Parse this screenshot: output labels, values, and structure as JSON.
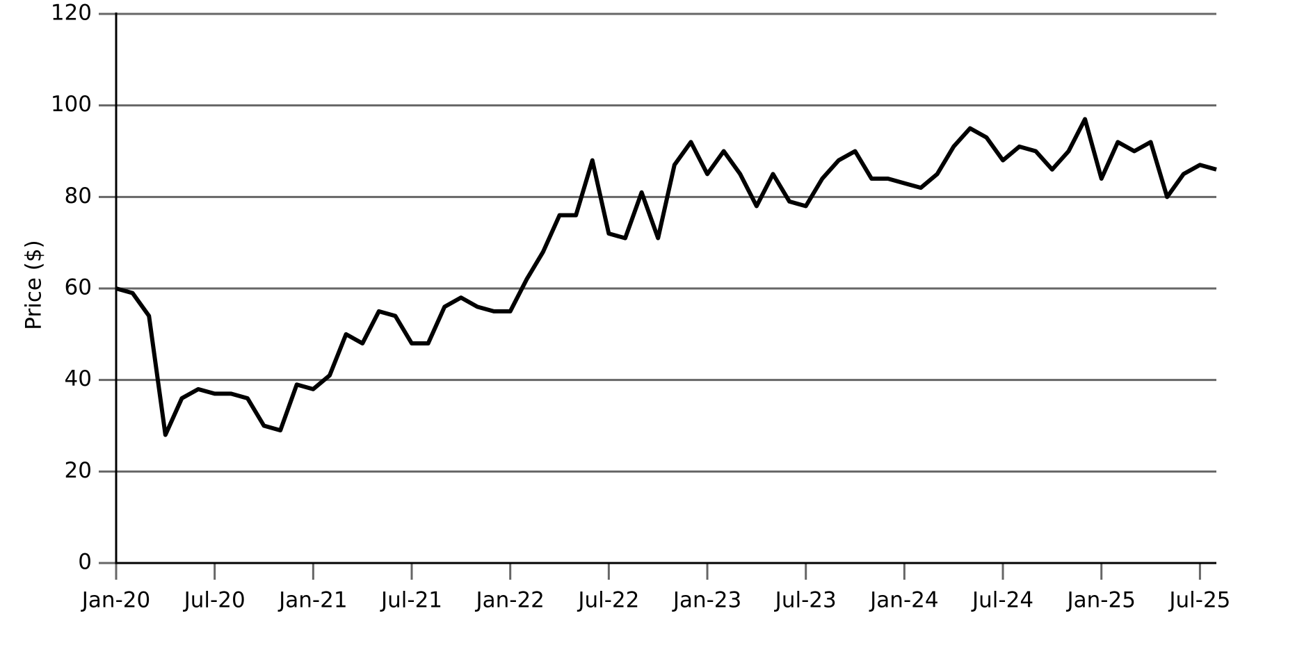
{
  "chart_data": {
    "type": "line",
    "y_label": "Price ($)",
    "x": [
      "2020-01",
      "2020-02",
      "2020-03",
      "2020-04",
      "2020-05",
      "2020-06",
      "2020-07",
      "2020-08",
      "2020-09",
      "2020-10",
      "2020-11",
      "2020-12",
      "2021-01",
      "2021-02",
      "2021-03",
      "2021-04",
      "2021-05",
      "2021-06",
      "2021-07",
      "2021-08",
      "2021-09",
      "2021-10",
      "2021-11",
      "2021-12",
      "2022-01",
      "2022-02",
      "2022-03",
      "2022-04",
      "2022-05",
      "2022-06",
      "2022-07",
      "2022-08",
      "2022-09",
      "2022-10",
      "2022-11",
      "2022-12",
      "2023-01",
      "2023-02",
      "2023-03",
      "2023-04",
      "2023-05",
      "2023-06",
      "2023-07",
      "2023-08",
      "2023-09",
      "2023-10",
      "2023-11",
      "2023-12",
      "2024-01",
      "2024-02",
      "2024-03",
      "2024-04",
      "2024-05",
      "2024-06",
      "2024-07",
      "2024-08",
      "2024-09",
      "2024-10",
      "2024-11",
      "2024-12",
      "2025-01",
      "2025-02",
      "2025-03",
      "2025-04",
      "2025-05",
      "2025-06",
      "2025-07",
      "2025-08"
    ],
    "series": [
      {
        "name": "Price",
        "color": "#000000",
        "values": [
          60,
          59,
          54,
          28,
          36,
          38,
          37,
          37,
          36,
          30,
          29,
          39,
          38,
          41,
          50,
          48,
          55,
          54,
          48,
          48,
          56,
          58,
          56,
          55,
          55,
          62,
          68,
          76,
          76,
          88,
          72,
          71,
          81,
          71,
          87,
          92,
          85,
          90,
          85,
          78,
          85,
          79,
          78,
          84,
          88,
          90,
          84,
          84,
          83,
          82,
          85,
          91,
          95,
          93,
          88,
          91,
          90,
          86,
          90,
          97,
          84,
          92,
          90,
          92,
          80,
          85,
          87,
          86
        ]
      }
    ],
    "xlim": [
      "2020-01",
      "2025-08"
    ],
    "xticks": [
      {
        "value": "2020-01",
        "label": "Jan-20"
      },
      {
        "value": "2020-07",
        "label": "Jul-20"
      },
      {
        "value": "2021-01",
        "label": "Jan-21"
      },
      {
        "value": "2021-07",
        "label": "Jul-21"
      },
      {
        "value": "2022-01",
        "label": "Jan-22"
      },
      {
        "value": "2022-07",
        "label": "Jul-22"
      },
      {
        "value": "2023-01",
        "label": "Jan-23"
      },
      {
        "value": "2023-07",
        "label": "Jul-23"
      },
      {
        "value": "2024-01",
        "label": "Jan-24"
      },
      {
        "value": "2024-07",
        "label": "Jul-24"
      },
      {
        "value": "2025-01",
        "label": "Jan-25"
      },
      {
        "value": "2025-07",
        "label": "Jul-25"
      }
    ],
    "ylim": [
      0,
      120
    ],
    "yticks": [
      0,
      20,
      40,
      60,
      80,
      100,
      120
    ],
    "grid": true
  }
}
